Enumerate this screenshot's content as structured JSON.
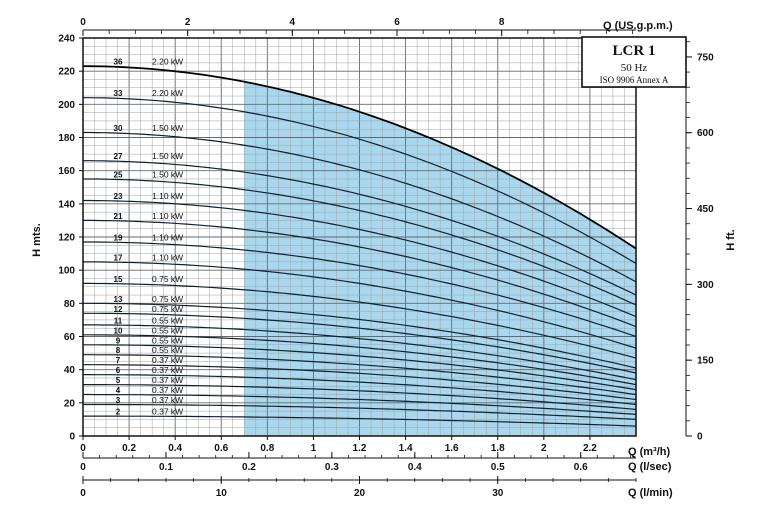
{
  "chart_data": {
    "type": "line",
    "title": "LCR 1",
    "subtitle": "50 Hz",
    "standard": "ISO 9906 Annex A",
    "ylabel_left": "H mts.",
    "ylabel_right": "H ft.",
    "xlabel_bottom": "Q (m³/h)",
    "xlabel_top": "Q (US.g.p.m.)",
    "xlabel_ls": "Q (l/sec)",
    "xlabel_lmin": "Q (l/min)",
    "xlim": [
      0,
      2.4
    ],
    "ylim": [
      0,
      240
    ],
    "grid": true,
    "x_ticks": [
      "0",
      "0.2",
      "0.4",
      "0.6",
      "0.8",
      "1",
      "1.2",
      "1.4",
      "1.6",
      "1.8",
      "2",
      "2.2"
    ],
    "y_ticks": [
      "0",
      "20",
      "40",
      "60",
      "80",
      "100",
      "120",
      "140",
      "160",
      "180",
      "200",
      "220",
      "240"
    ],
    "ft_ticks": [
      "0",
      "150",
      "300",
      "450",
      "600",
      "750"
    ],
    "gpm_ticks": [
      "0",
      "2",
      "4",
      "6",
      "8"
    ],
    "ls_ticks": [
      "0",
      "0.1",
      "0.2",
      "0.3",
      "0.4",
      "0.5",
      "0.6"
    ],
    "lmin_ticks": [
      "0",
      "10",
      "20",
      "30"
    ],
    "shaded_region_x": [
      0.7,
      2.4
    ],
    "series": [
      {
        "name": "36",
        "power": "2.20 kW",
        "h0": 223,
        "h_end": 113
      },
      {
        "name": "33",
        "power": "2.20 kW",
        "h0": 204,
        "h_end": 104
      },
      {
        "name": "30",
        "power": "1.50 kW",
        "h0": 183,
        "h_end": 93
      },
      {
        "name": "27",
        "power": "1.50 kW",
        "h0": 166,
        "h_end": 85
      },
      {
        "name": "25",
        "power": "1.50 kW",
        "h0": 155,
        "h_end": 79
      },
      {
        "name": "23",
        "power": "1.10 kW",
        "h0": 142,
        "h_end": 72
      },
      {
        "name": "21",
        "power": "1.10 kW",
        "h0": 130,
        "h_end": 66
      },
      {
        "name": "19",
        "power": "1.10 kW",
        "h0": 117,
        "h_end": 60
      },
      {
        "name": "17",
        "power": "1.10 kW",
        "h0": 105,
        "h_end": 53
      },
      {
        "name": "15",
        "power": "0.75 kW",
        "h0": 92,
        "h_end": 47
      },
      {
        "name": "13",
        "power": "0.75 kW",
        "h0": 80,
        "h_end": 41
      },
      {
        "name": "12",
        "power": "0.75 kW",
        "h0": 74,
        "h_end": 38
      },
      {
        "name": "11",
        "power": "0.55 kW",
        "h0": 67,
        "h_end": 34
      },
      {
        "name": "10",
        "power": "0.55 kW",
        "h0": 61,
        "h_end": 31
      },
      {
        "name": "9",
        "power": "0.55 kW",
        "h0": 55,
        "h_end": 28
      },
      {
        "name": "8",
        "power": "0.55 kW",
        "h0": 49,
        "h_end": 25
      },
      {
        "name": "7",
        "power": "0.37 kW",
        "h0": 43,
        "h_end": 22
      },
      {
        "name": "6",
        "power": "0.37 kW",
        "h0": 37,
        "h_end": 19
      },
      {
        "name": "5",
        "power": "0.37 kW",
        "h0": 31,
        "h_end": 16
      },
      {
        "name": "4",
        "power": "0.37 kW",
        "h0": 25,
        "h_end": 13
      },
      {
        "name": "3",
        "power": "0.37 kW",
        "h0": 19,
        "h_end": 10
      },
      {
        "name": "2",
        "power": "0.37 kW",
        "h0": 12,
        "h_end": 6
      }
    ]
  }
}
